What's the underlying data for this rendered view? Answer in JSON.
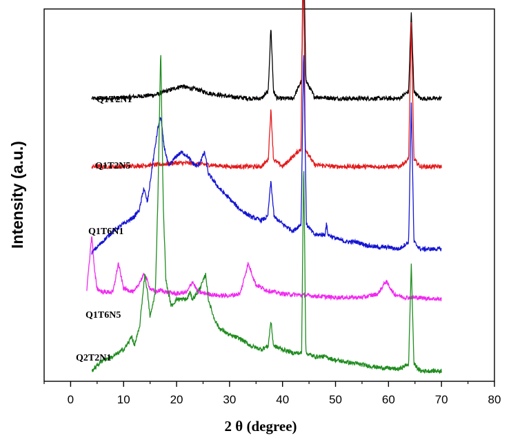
{
  "chart_data": {
    "type": "line",
    "xlabel": "2 θ (degree)",
    "ylabel": "Intensity (a.u.)",
    "xlim": [
      -5,
      80
    ],
    "xticks": [
      0,
      10,
      20,
      30,
      40,
      50,
      60,
      70,
      80
    ],
    "y_ticks_shown": false,
    "grid": false,
    "legend": "none",
    "series": [
      {
        "name": "Q1T2N1",
        "color": "#000000",
        "baseline": 0.76,
        "x": [
          4,
          8,
          12,
          16,
          18,
          20,
          21,
          22,
          24,
          26,
          28,
          30,
          34,
          36,
          37.3,
          37.8,
          38.3,
          39,
          42,
          43.6,
          44.0,
          44.4,
          46,
          50,
          56,
          62,
          63.8,
          64.3,
          64.8,
          66,
          70
        ],
        "y": [
          0.0,
          0.0,
          0.005,
          0.01,
          0.02,
          0.03,
          0.035,
          0.03,
          0.025,
          0.015,
          0.01,
          0.005,
          0.0,
          0.0,
          0.02,
          0.2,
          0.02,
          0.0,
          0.0,
          0.05,
          0.42,
          0.05,
          0.005,
          0.0,
          0.0,
          0.0,
          0.02,
          0.24,
          0.02,
          0.0,
          0.0
        ]
      },
      {
        "name": "Q1T2N5",
        "color": "#e41a1c",
        "baseline": 0.57,
        "x": [
          4,
          10,
          16,
          20,
          22,
          26,
          30,
          36,
          37.3,
          37.8,
          38.3,
          40,
          43.5,
          43.9,
          44.3,
          46,
          50,
          56,
          62,
          63.8,
          64.3,
          64.8,
          66,
          70
        ],
        "y": [
          0.0,
          0.0,
          0.005,
          0.01,
          0.01,
          0.005,
          0.0,
          0.0,
          0.02,
          0.16,
          0.02,
          0.0,
          0.05,
          0.65,
          0.05,
          0.005,
          0.0,
          0.0,
          0.0,
          0.02,
          0.4,
          0.02,
          0.0,
          0.0
        ]
      },
      {
        "name": "Q1T6N1",
        "color": "#1414d2",
        "baseline": 0.33,
        "x": [
          4,
          6,
          8,
          10,
          12,
          13,
          13.8,
          14.5,
          15.5,
          16.5,
          17,
          17.6,
          18.5,
          20,
          21,
          22,
          23,
          24,
          25.3,
          26,
          28,
          30,
          32,
          34,
          36,
          37.2,
          37.8,
          38.4,
          40,
          42,
          43.5,
          44,
          44.5,
          46,
          48,
          48.3,
          48.6,
          50,
          52,
          54,
          56,
          58,
          60,
          62,
          63.8,
          64.3,
          64.8,
          66,
          70
        ],
        "y": [
          0.0,
          0.03,
          0.06,
          0.08,
          0.1,
          0.12,
          0.18,
          0.14,
          0.25,
          0.35,
          0.38,
          0.3,
          0.24,
          0.27,
          0.28,
          0.27,
          0.25,
          0.24,
          0.28,
          0.22,
          0.18,
          0.15,
          0.12,
          0.1,
          0.09,
          0.1,
          0.2,
          0.1,
          0.08,
          0.06,
          0.08,
          0.57,
          0.08,
          0.05,
          0.05,
          0.08,
          0.05,
          0.04,
          0.03,
          0.03,
          0.02,
          0.015,
          0.015,
          0.01,
          0.03,
          0.42,
          0.03,
          0.01,
          0.01
        ]
      },
      {
        "name": "Q1T6N5",
        "color": "#f028f0",
        "baseline": 0.2,
        "x": [
          3,
          3.5,
          4,
          4.5,
          5,
          6,
          8,
          9,
          10,
          12,
          13.5,
          14,
          15,
          16,
          17,
          18,
          20,
          22,
          23,
          24,
          26,
          28,
          30,
          32,
          33.5,
          34,
          35,
          37,
          40,
          45,
          50,
          55,
          58,
          59.5,
          60,
          61,
          63,
          65,
          70
        ],
        "y": [
          0.02,
          0.1,
          0.18,
          0.08,
          0.03,
          0.02,
          0.02,
          0.1,
          0.03,
          0.02,
          0.06,
          0.07,
          0.03,
          0.02,
          0.025,
          0.02,
          0.015,
          0.02,
          0.05,
          0.02,
          0.015,
          0.01,
          0.01,
          0.015,
          0.1,
          0.08,
          0.04,
          0.025,
          0.015,
          0.01,
          0.005,
          0.005,
          0.015,
          0.05,
          0.04,
          0.015,
          0.005,
          0.005,
          0.0
        ]
      },
      {
        "name": "Q2T2N1",
        "color": "#1e8c1e",
        "baseline": 0.0,
        "x": [
          4,
          6,
          8,
          10,
          11,
          11.5,
          12,
          13,
          14,
          14.5,
          15,
          16,
          16.5,
          17,
          17.5,
          18,
          19,
          20,
          21,
          22,
          22.5,
          23,
          24,
          25,
          25.5,
          26,
          27,
          28,
          30,
          32,
          34,
          36,
          37.3,
          37.8,
          38.3,
          40,
          42,
          43.6,
          44.0,
          44.4,
          46,
          48,
          50,
          54,
          58,
          62,
          63.8,
          64.3,
          64.8,
          66,
          70
        ],
        "y": [
          0.0,
          0.03,
          0.04,
          0.06,
          0.08,
          0.1,
          0.07,
          0.12,
          0.27,
          0.22,
          0.15,
          0.22,
          0.5,
          0.9,
          0.45,
          0.25,
          0.18,
          0.2,
          0.2,
          0.2,
          0.22,
          0.2,
          0.22,
          0.25,
          0.27,
          0.2,
          0.15,
          0.12,
          0.1,
          0.09,
          0.07,
          0.06,
          0.07,
          0.14,
          0.07,
          0.06,
          0.05,
          0.05,
          0.59,
          0.05,
          0.04,
          0.04,
          0.03,
          0.02,
          0.01,
          0.005,
          0.02,
          0.3,
          0.02,
          0.0,
          0.0
        ]
      }
    ]
  }
}
